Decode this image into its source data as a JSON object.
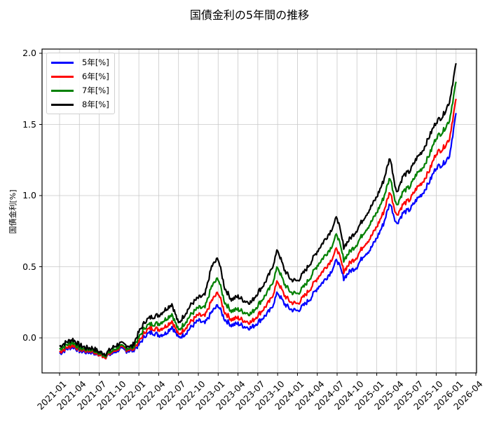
{
  "chart_data": {
    "type": "line",
    "title": "国債金利の5年間の推移",
    "xlabel": "",
    "ylabel": "国債金利[%]",
    "ylim": [
      -0.25,
      2.03
    ],
    "xlim": [
      "2020-12",
      "2026-04"
    ],
    "grid": true,
    "legend_position": "upper left",
    "y_ticks": [
      "0.0",
      "0.5",
      "1.0",
      "1.5",
      "2.0"
    ],
    "y_tick_values": [
      0.0,
      0.5,
      1.0,
      1.5,
      2.0
    ],
    "x_ticks": [
      "2021-01",
      "2021-04",
      "2021-07",
      "2021-10",
      "2022-01",
      "2022-04",
      "2022-07",
      "2022-10",
      "2023-01",
      "2023-04",
      "2023-07",
      "2023-10",
      "2024-01",
      "2024-04",
      "2024-07",
      "2024-10",
      "2025-01",
      "2025-04",
      "2025-07",
      "2025-10",
      "2026-01",
      "2026-04"
    ],
    "x": [
      "2021-01",
      "2021-02",
      "2021-03",
      "2021-04",
      "2021-05",
      "2021-06",
      "2021-07",
      "2021-08",
      "2021-09",
      "2021-10",
      "2021-11",
      "2021-12",
      "2022-01",
      "2022-02",
      "2022-03",
      "2022-04",
      "2022-05",
      "2022-06",
      "2022-07",
      "2022-08",
      "2022-09",
      "2022-10",
      "2022-11",
      "2022-12",
      "2023-01",
      "2023-02",
      "2023-03",
      "2023-04",
      "2023-05",
      "2023-06",
      "2023-07",
      "2023-08",
      "2023-09",
      "2023-10",
      "2023-11",
      "2023-12",
      "2024-01",
      "2024-02",
      "2024-03",
      "2024-04",
      "2024-05",
      "2024-06",
      "2024-07",
      "2024-08",
      "2024-09",
      "2024-10",
      "2024-11",
      "2024-12",
      "2025-01",
      "2025-02",
      "2025-03",
      "2025-04",
      "2025-05",
      "2025-06",
      "2025-07",
      "2025-08",
      "2025-09",
      "2025-10",
      "2025-11",
      "2025-12",
      "2026-01"
    ],
    "series": [
      {
        "name": "5年[%]",
        "color": "#0000ff",
        "values": [
          -0.11,
          -0.08,
          -0.06,
          -0.09,
          -0.1,
          -0.1,
          -0.12,
          -0.13,
          -0.11,
          -0.08,
          -0.09,
          -0.09,
          -0.05,
          0.02,
          0.04,
          0.02,
          0.03,
          0.08,
          0.0,
          0.03,
          0.08,
          0.12,
          0.1,
          0.18,
          0.23,
          0.13,
          0.09,
          0.1,
          0.08,
          0.07,
          0.11,
          0.15,
          0.2,
          0.32,
          0.24,
          0.2,
          0.19,
          0.23,
          0.28,
          0.35,
          0.4,
          0.46,
          0.55,
          0.42,
          0.47,
          0.5,
          0.58,
          0.62,
          0.7,
          0.8,
          0.95,
          0.8,
          0.88,
          0.9,
          0.97,
          1.02,
          1.1,
          1.2,
          1.22,
          1.28,
          1.58
        ]
      },
      {
        "name": "6年[%]",
        "color": "#ff0000",
        "values": [
          -0.1,
          -0.07,
          -0.05,
          -0.08,
          -0.09,
          -0.09,
          -0.12,
          -0.13,
          -0.1,
          -0.07,
          -0.08,
          -0.08,
          -0.03,
          0.05,
          0.07,
          0.06,
          0.08,
          0.12,
          0.02,
          0.07,
          0.12,
          0.16,
          0.15,
          0.26,
          0.32,
          0.18,
          0.13,
          0.14,
          0.12,
          0.11,
          0.16,
          0.21,
          0.27,
          0.4,
          0.3,
          0.25,
          0.24,
          0.29,
          0.35,
          0.42,
          0.48,
          0.54,
          0.63,
          0.47,
          0.53,
          0.57,
          0.65,
          0.7,
          0.78,
          0.88,
          1.03,
          0.86,
          0.94,
          0.97,
          1.05,
          1.1,
          1.18,
          1.3,
          1.33,
          1.4,
          1.68
        ]
      },
      {
        "name": "7年[%]",
        "color": "#008000",
        "values": [
          -0.08,
          -0.05,
          -0.03,
          -0.07,
          -0.08,
          -0.08,
          -0.11,
          -0.12,
          -0.09,
          -0.06,
          -0.07,
          -0.07,
          0.0,
          0.08,
          0.1,
          0.1,
          0.13,
          0.17,
          0.05,
          0.11,
          0.17,
          0.21,
          0.21,
          0.36,
          0.42,
          0.25,
          0.19,
          0.2,
          0.18,
          0.17,
          0.23,
          0.29,
          0.36,
          0.5,
          0.38,
          0.32,
          0.31,
          0.36,
          0.43,
          0.51,
          0.57,
          0.63,
          0.73,
          0.55,
          0.61,
          0.66,
          0.74,
          0.8,
          0.88,
          0.98,
          1.13,
          0.93,
          1.03,
          1.06,
          1.15,
          1.2,
          1.29,
          1.41,
          1.45,
          1.53,
          1.8
        ]
      },
      {
        "name": "8年[%]",
        "color": "#000000",
        "values": [
          -0.06,
          -0.03,
          -0.01,
          -0.05,
          -0.07,
          -0.07,
          -0.1,
          -0.11,
          -0.07,
          -0.04,
          -0.05,
          -0.06,
          0.04,
          0.12,
          0.15,
          0.16,
          0.2,
          0.24,
          0.1,
          0.17,
          0.24,
          0.28,
          0.3,
          0.5,
          0.56,
          0.35,
          0.27,
          0.29,
          0.26,
          0.25,
          0.32,
          0.38,
          0.47,
          0.62,
          0.48,
          0.41,
          0.4,
          0.46,
          0.53,
          0.61,
          0.68,
          0.75,
          0.85,
          0.64,
          0.7,
          0.76,
          0.84,
          0.91,
          0.99,
          1.1,
          1.27,
          1.02,
          1.14,
          1.17,
          1.26,
          1.32,
          1.42,
          1.52,
          1.56,
          1.66,
          1.93
        ]
      }
    ]
  },
  "legend": {
    "items": [
      {
        "label": "5年[%]",
        "color": "#0000ff"
      },
      {
        "label": "6年[%]",
        "color": "#ff0000"
      },
      {
        "label": "7年[%]",
        "color": "#008000"
      },
      {
        "label": "8年[%]",
        "color": "#000000"
      }
    ]
  }
}
